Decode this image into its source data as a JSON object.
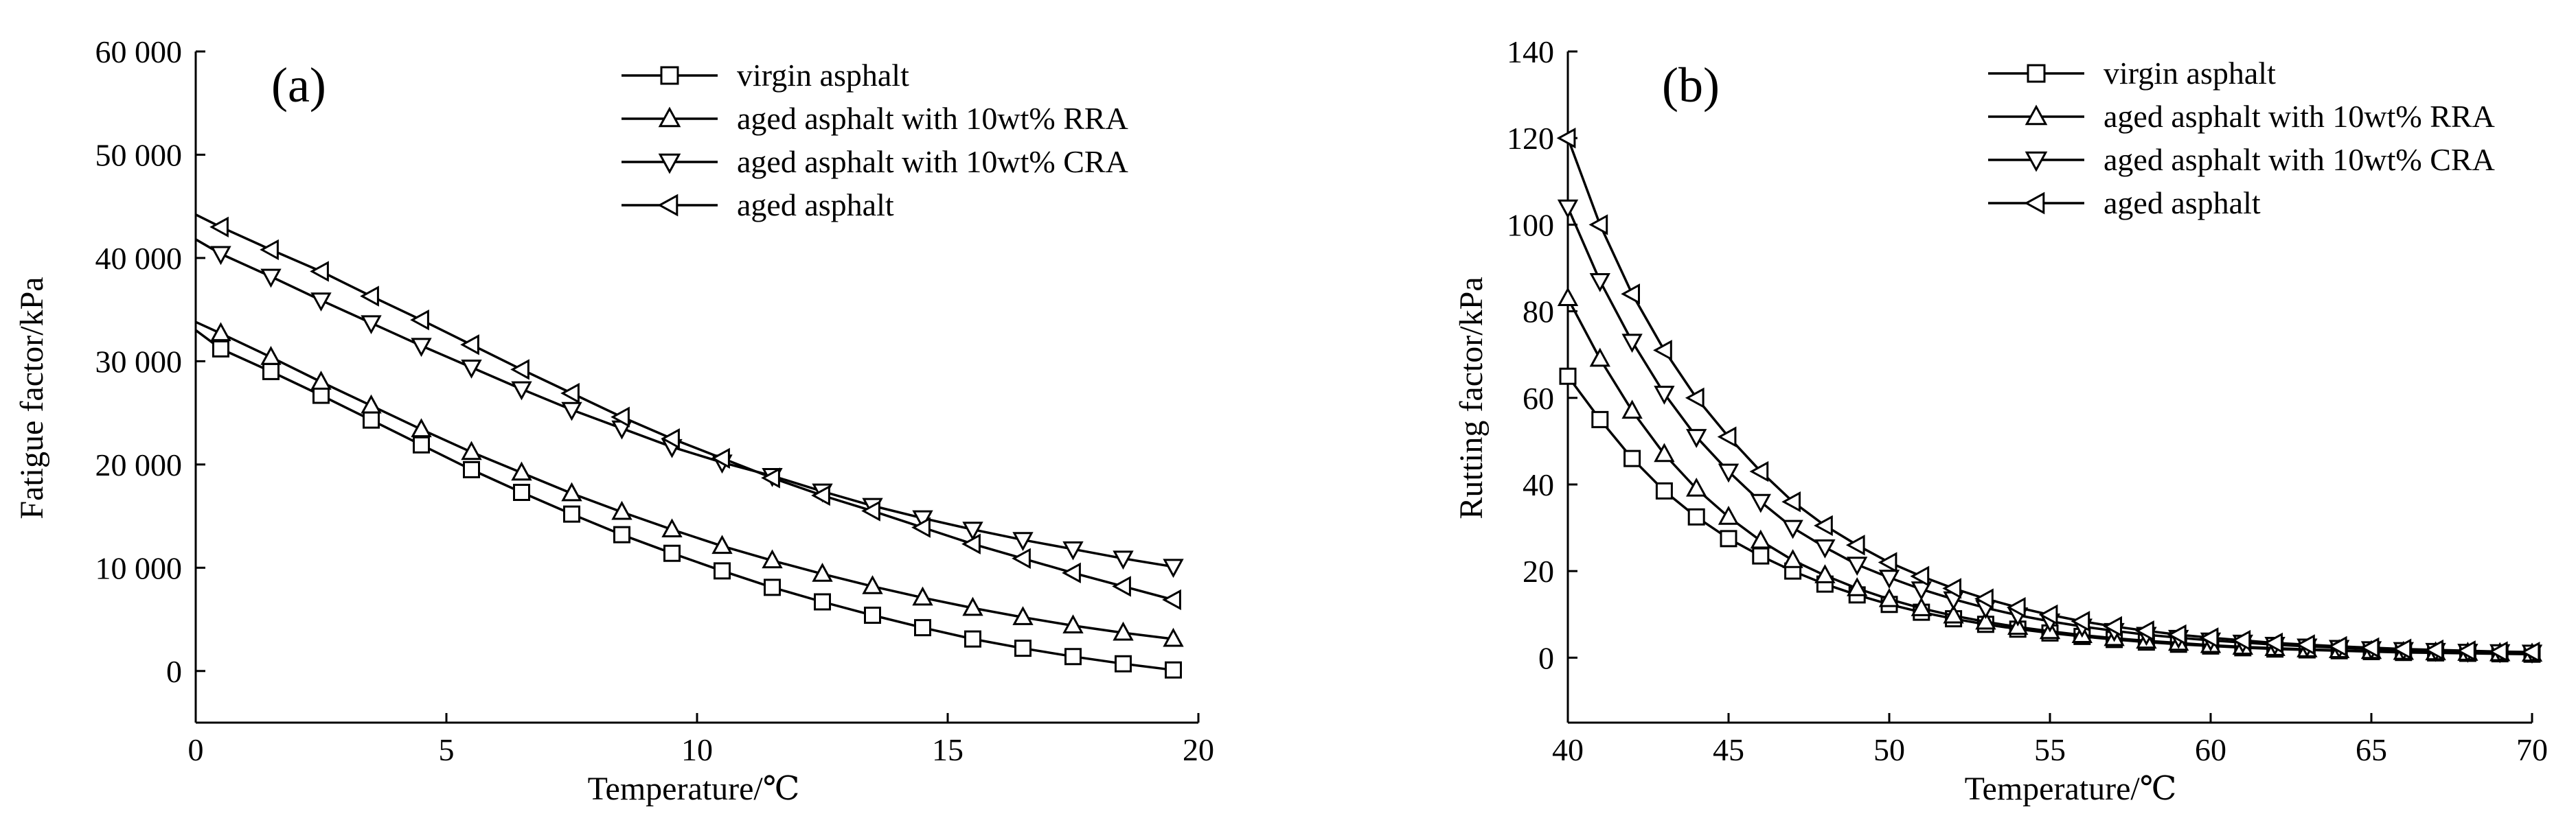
{
  "chart_data": [
    {
      "type": "line",
      "panel_label": "(a)",
      "xlabel": "Temperature/℃",
      "ylabel": "Fatigue factor/kPa",
      "xlim": [
        0,
        20
      ],
      "ylim": [
        -5000,
        60000
      ],
      "xticks": [
        0,
        5,
        10,
        15,
        20
      ],
      "xtick_labels": [
        "0",
        "5",
        "10",
        "15",
        "20"
      ],
      "yticks": [
        0,
        10000,
        20000,
        30000,
        40000,
        50000,
        60000
      ],
      "ytick_labels": [
        "0",
        "10 000",
        "20 000",
        "30 000",
        "40 000",
        "50 000",
        "60 000"
      ],
      "legend_position": "top-right",
      "x": [
        0.5,
        1.5,
        2.5,
        3.5,
        4.5,
        5.5,
        6.5,
        7.5,
        8.5,
        9.5,
        10.5,
        11.5,
        12.5,
        13.5,
        14.5,
        15.5,
        16.5,
        17.5,
        18.5,
        19.5
      ],
      "series": [
        {
          "name": "virgin asphalt",
          "marker": "square",
          "y0": 33000,
          "values": [
            31200,
            29000,
            26700,
            24300,
            21900,
            19500,
            17300,
            15200,
            13200,
            11400,
            9700,
            8100,
            6700,
            5400,
            4200,
            3100,
            2200,
            1400,
            700,
            100
          ]
        },
        {
          "name": "aged asphalt with 10wt% RRA",
          "marker": "triangle-up",
          "y0": 33800,
          "values": [
            32700,
            30400,
            28000,
            25700,
            23400,
            21200,
            19200,
            17200,
            15400,
            13700,
            12100,
            10700,
            9400,
            8200,
            7100,
            6100,
            5200,
            4400,
            3700,
            3100
          ]
        },
        {
          "name": "aged asphalt with 10wt% CRA",
          "marker": "triangle-down",
          "y0": 41800,
          "values": [
            40400,
            38200,
            35900,
            33700,
            31500,
            29400,
            27300,
            25300,
            23500,
            21700,
            20200,
            18900,
            17400,
            16000,
            14800,
            13700,
            12700,
            11800,
            10900,
            10100
          ]
        },
        {
          "name": "aged asphalt",
          "marker": "triangle-left",
          "y0": 44200,
          "values": [
            43000,
            40800,
            38700,
            36300,
            34000,
            31600,
            29200,
            26900,
            24600,
            22500,
            20600,
            18700,
            17000,
            15500,
            13900,
            12300,
            10900,
            9500,
            8200,
            6900
          ]
        }
      ]
    },
    {
      "type": "line",
      "panel_label": "(b)",
      "xlabel": "Temperature/℃",
      "ylabel": "Rutting factor/kPa",
      "xlim": [
        40,
        70
      ],
      "ylim": [
        -15,
        140
      ],
      "xticks": [
        40,
        45,
        50,
        55,
        60,
        65,
        70
      ],
      "xtick_labels": [
        "40",
        "45",
        "50",
        "55",
        "60",
        "65",
        "70"
      ],
      "yticks": [
        0,
        20,
        40,
        60,
        80,
        100,
        120,
        140
      ],
      "ytick_labels": [
        "0",
        "20",
        "40",
        "60",
        "80",
        "100",
        "120",
        "140"
      ],
      "legend_position": "top-right",
      "x": [
        40,
        41,
        42,
        43,
        44,
        45,
        46,
        47,
        48,
        49,
        50,
        51,
        52,
        53,
        54,
        55,
        56,
        57,
        58,
        59,
        60,
        61,
        62,
        63,
        64,
        65,
        66,
        67,
        68,
        69,
        70
      ],
      "series": [
        {
          "name": "virgin asphalt",
          "marker": "square",
          "values": [
            65,
            55,
            46,
            38.5,
            32.5,
            27.5,
            23.5,
            20,
            17,
            14.5,
            12.3,
            10.5,
            9,
            7.7,
            6.6,
            5.7,
            4.9,
            4.2,
            3.6,
            3.1,
            2.7,
            2.3,
            2,
            1.8,
            1.6,
            1.4,
            1.2,
            1.1,
            1,
            0.9,
            0.8
          ]
        },
        {
          "name": "aged asphalt with 10wt% RRA",
          "marker": "triangle-up",
          "values": [
            83,
            69,
            57,
            47,
            39,
            32.5,
            27,
            22.5,
            19,
            16,
            13.5,
            11.4,
            9.7,
            8.3,
            7.1,
            6.1,
            5.2,
            4.5,
            3.9,
            3.4,
            2.9,
            2.5,
            2.2,
            1.9,
            1.7,
            1.5,
            1.3,
            1.2,
            1.1,
            1,
            0.9
          ]
        },
        {
          "name": "aged asphalt with 10wt% CRA",
          "marker": "triangle-down",
          "values": [
            104,
            87,
            73,
            61,
            51,
            43,
            36,
            30,
            25.5,
            21.5,
            18.5,
            15.8,
            13.5,
            11.5,
            9.8,
            8.4,
            7.2,
            6.2,
            5.3,
            4.6,
            4,
            3.5,
            3,
            2.6,
            2.3,
            2,
            1.8,
            1.6,
            1.4,
            1.3,
            1.2
          ]
        },
        {
          "name": "aged asphalt",
          "marker": "triangle-left",
          "values": [
            120,
            100,
            84,
            71,
            60,
            51,
            43,
            36,
            30.5,
            26,
            22,
            18.8,
            16,
            13.6,
            11.6,
            9.9,
            8.4,
            7.2,
            6.2,
            5.3,
            4.6,
            4,
            3.4,
            3,
            2.6,
            2.3,
            2,
            1.8,
            1.6,
            1.4,
            1.3
          ]
        }
      ]
    }
  ]
}
